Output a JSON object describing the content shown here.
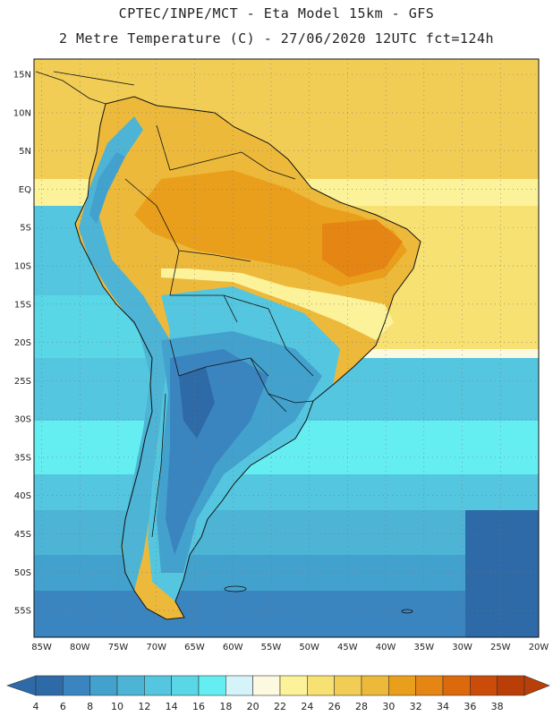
{
  "header": {
    "title_line1": "CPTEC/INPE/MCT -  Eta Model 15km - GFS",
    "title_line2": "2 Metre Temperature (C) - 27/06/2020 12UTC fct=124h"
  },
  "map": {
    "lat_labels": [
      "15N",
      "10N",
      "5N",
      "EQ",
      "5S",
      "10S",
      "15S",
      "20S",
      "25S",
      "30S",
      "35S",
      "40S",
      "45S",
      "50S",
      "55S"
    ],
    "lon_labels": [
      "85W",
      "80W",
      "75W",
      "70W",
      "65W",
      "60W",
      "55W",
      "50W",
      "45W",
      "40W",
      "35W",
      "30W",
      "25W",
      "20W"
    ],
    "lat_values": [
      15,
      10,
      5,
      0,
      -5,
      -10,
      -15,
      -20,
      -25,
      -30,
      -35,
      -40,
      -45,
      -50,
      -55
    ],
    "lon_values": [
      -85,
      -80,
      -75,
      -70,
      -65,
      -60,
      -55,
      -50,
      -45,
      -40,
      -35,
      -30,
      -25,
      -20
    ],
    "grid_style": "dotted"
  },
  "colorbar": {
    "labels": [
      "4",
      "6",
      "8",
      "10",
      "12",
      "14",
      "16",
      "18",
      "20",
      "22",
      "24",
      "26",
      "28",
      "30",
      "32",
      "34",
      "36",
      "38"
    ],
    "colors": [
      "#2e6aa8",
      "#3a85c0",
      "#43a1cd",
      "#4db4d6",
      "#55c6df",
      "#5ad7e6",
      "#65eef2",
      "#d4f4fa",
      "#fdf8e0",
      "#fbf29a",
      "#f7e173",
      "#f2cd55",
      "#edb93b",
      "#ea9f1c",
      "#e58514",
      "#dc6a0d",
      "#cb4b0a",
      "#b93e07"
    ]
  },
  "colors": {
    "ocean_cold": "#2e6aa8",
    "land_warm": "#edb93b",
    "coastline": "#111111"
  }
}
